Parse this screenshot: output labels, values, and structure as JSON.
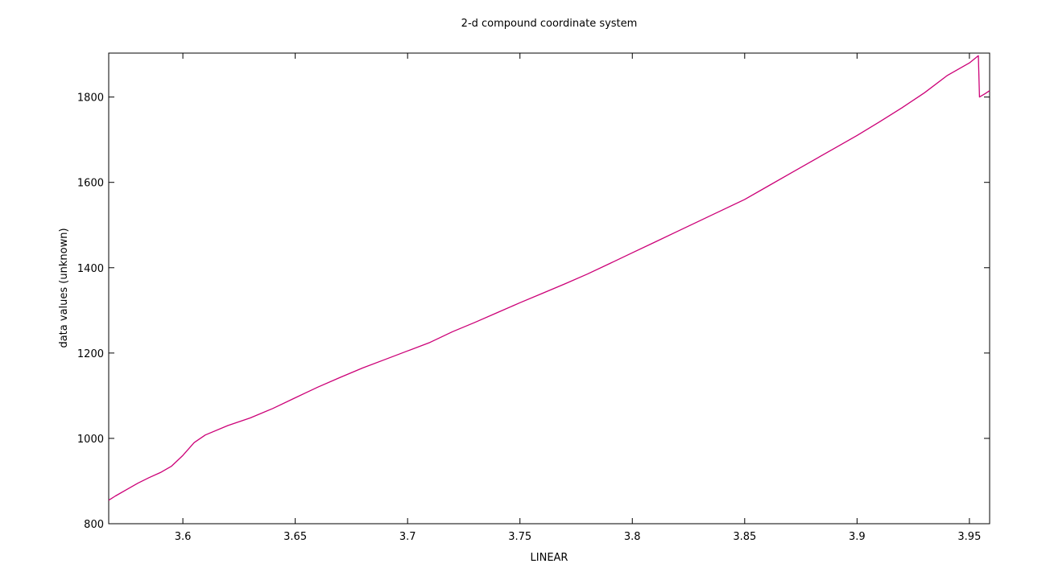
{
  "chart_data": {
    "type": "line",
    "title": "2-d compound coordinate system",
    "xlabel": "LINEAR",
    "ylabel": "data values (unknown)",
    "xlim": [
      3.567,
      3.959
    ],
    "ylim": [
      800,
      1903
    ],
    "x_ticks": [
      3.6,
      3.65,
      3.7,
      3.75,
      3.8,
      3.85,
      3.9,
      3.95
    ],
    "x_tick_labels": [
      "3.6",
      "3.65",
      "3.7",
      "3.75",
      "3.8",
      "3.85",
      "3.9",
      "3.95"
    ],
    "y_ticks": [
      800,
      1000,
      1200,
      1400,
      1600,
      1800
    ],
    "y_tick_labels": [
      "800",
      "1000",
      "1200",
      "1400",
      "1600",
      "1800"
    ],
    "grid": false,
    "series": [
      {
        "color": "#cc0077",
        "x": [
          3.567,
          3.57,
          3.575,
          3.58,
          3.585,
          3.59,
          3.595,
          3.6,
          3.605,
          3.61,
          3.62,
          3.63,
          3.64,
          3.65,
          3.66,
          3.67,
          3.68,
          3.69,
          3.7,
          3.71,
          3.72,
          3.73,
          3.74,
          3.75,
          3.76,
          3.77,
          3.78,
          3.79,
          3.8,
          3.81,
          3.82,
          3.83,
          3.84,
          3.85,
          3.86,
          3.87,
          3.88,
          3.89,
          3.9,
          3.91,
          3.92,
          3.93,
          3.94,
          3.95,
          3.954,
          3.9545,
          3.957,
          3.959
        ],
        "y": [
          855,
          865,
          880,
          895,
          908,
          920,
          935,
          960,
          990,
          1008,
          1030,
          1048,
          1070,
          1095,
          1120,
          1143,
          1165,
          1185,
          1205,
          1225,
          1250,
          1272,
          1295,
          1318,
          1340,
          1362,
          1385,
          1410,
          1435,
          1460,
          1485,
          1510,
          1535,
          1560,
          1590,
          1620,
          1650,
          1680,
          1710,
          1742,
          1775,
          1810,
          1850,
          1880,
          1897,
          1800,
          1808,
          1815
        ]
      }
    ]
  }
}
